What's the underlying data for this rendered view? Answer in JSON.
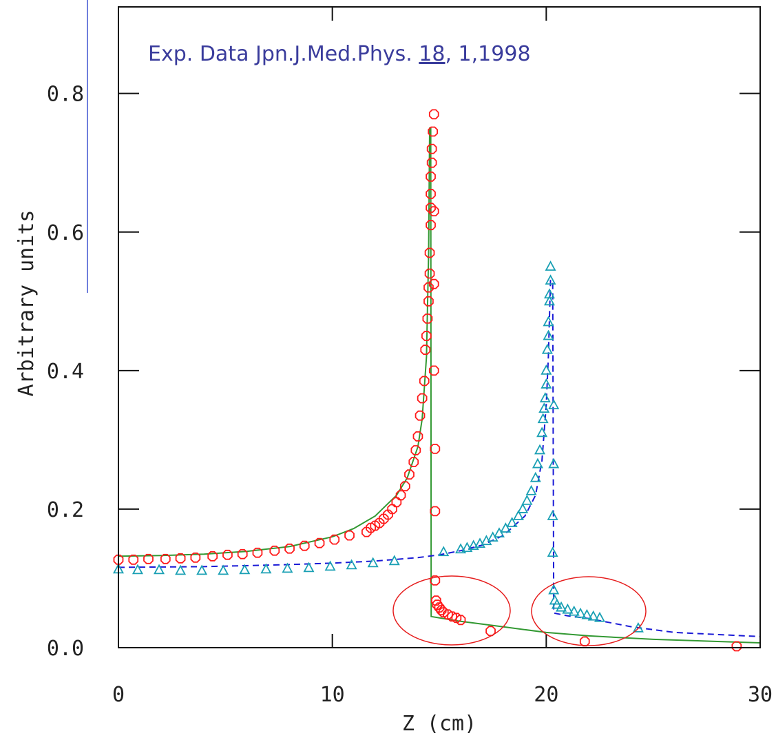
{
  "chart_data": {
    "type": "scatter",
    "annotation": [
      "Exp. Data Jpn.J.Med.Phys. ",
      "18",
      ", 1,1998"
    ],
    "x_label": "Z (cm)",
    "y_label": "Arbitrary units",
    "xlim": [
      0,
      30
    ],
    "ylim": [
      0,
      0.925
    ],
    "xticks": [
      0,
      10,
      20,
      30
    ],
    "yticks": [
      {
        "value": 0,
        "label": "0.0"
      },
      0.2,
      0.4,
      0.6,
      0.8
    ],
    "series": [
      {
        "type": "scatter",
        "marker": "circle",
        "color": "#ff1a1a",
        "x": [
          0,
          0.7,
          1.4,
          2.2,
          2.9,
          3.6,
          4.4,
          5.1,
          5.8,
          6.5,
          7.3,
          8.0,
          8.7,
          9.4,
          10.1,
          10.8,
          11.6,
          11.8,
          12.0,
          12.2,
          12.4,
          12.6,
          12.8,
          13.0,
          13.2,
          13.4,
          13.6,
          13.8,
          13.9,
          14.0,
          14.1,
          14.2,
          14.3,
          14.35,
          14.4,
          14.45,
          14.5,
          14.5,
          14.55,
          14.55,
          14.6,
          14.6,
          14.6,
          14.6,
          14.65,
          14.65,
          14.7,
          14.75,
          14.75,
          14.75,
          14.75,
          14.8,
          14.8,
          14.8,
          14.85,
          14.9,
          15.0,
          15.1,
          15.2,
          15.4,
          15.6,
          15.8,
          16.0,
          17.4,
          21.8,
          28.9
        ],
        "values": [
          0.127,
          0.127,
          0.128,
          0.128,
          0.129,
          0.13,
          0.132,
          0.134,
          0.135,
          0.137,
          0.14,
          0.143,
          0.147,
          0.151,
          0.156,
          0.162,
          0.167,
          0.173,
          0.176,
          0.18,
          0.186,
          0.192,
          0.2,
          0.21,
          0.22,
          0.233,
          0.25,
          0.268,
          0.285,
          0.305,
          0.335,
          0.36,
          0.385,
          0.43,
          0.45,
          0.475,
          0.5,
          0.52,
          0.54,
          0.57,
          0.61,
          0.635,
          0.655,
          0.68,
          0.7,
          0.72,
          0.745,
          0.77,
          0.63,
          0.525,
          0.4,
          0.287,
          0.197,
          0.097,
          0.068,
          0.062,
          0.058,
          0.054,
          0.051,
          0.048,
          0.045,
          0.043,
          0.04,
          0.024,
          0.009,
          0.002
        ]
      },
      {
        "type": "scatter",
        "marker": "triangle",
        "color": "#1aa0b4",
        "x": [
          0,
          0.9,
          1.9,
          2.9,
          3.9,
          4.9,
          5.9,
          6.9,
          7.9,
          8.9,
          9.9,
          10.9,
          11.9,
          12.9,
          15.2,
          16.0,
          16.3,
          16.6,
          16.9,
          17.2,
          17.5,
          17.8,
          18.1,
          18.4,
          18.7,
          18.9,
          19.1,
          19.3,
          19.5,
          19.6,
          19.7,
          19.8,
          19.85,
          19.9,
          19.95,
          20.0,
          20.0,
          20.05,
          20.1,
          20.1,
          20.15,
          20.15,
          20.2,
          20.2,
          20.35,
          20.35,
          20.3,
          20.3,
          20.35,
          20.4,
          20.5,
          20.7,
          21.0,
          21.3,
          21.6,
          21.9,
          22.2,
          22.5,
          24.3
        ],
        "values": [
          0.113,
          0.112,
          0.112,
          0.111,
          0.111,
          0.111,
          0.112,
          0.113,
          0.114,
          0.115,
          0.117,
          0.119,
          0.122,
          0.125,
          0.138,
          0.142,
          0.144,
          0.147,
          0.15,
          0.154,
          0.159,
          0.165,
          0.172,
          0.18,
          0.19,
          0.2,
          0.212,
          0.226,
          0.245,
          0.265,
          0.285,
          0.31,
          0.33,
          0.345,
          0.36,
          0.38,
          0.4,
          0.43,
          0.45,
          0.47,
          0.5,
          0.51,
          0.53,
          0.55,
          0.35,
          0.265,
          0.19,
          0.137,
          0.083,
          0.068,
          0.062,
          0.058,
          0.055,
          0.052,
          0.049,
          0.047,
          0.045,
          0.043,
          0.028
        ]
      },
      {
        "type": "line",
        "color": "#339933",
        "dashed": false,
        "x": [
          0,
          2,
          4,
          6,
          8,
          10,
          11,
          12,
          13,
          13.5,
          14,
          14.2,
          14.4,
          14.5,
          14.55,
          14.6,
          14.62,
          16,
          18,
          20,
          22,
          25,
          28,
          30
        ],
        "values": [
          0.132,
          0.133,
          0.135,
          0.139,
          0.146,
          0.16,
          0.172,
          0.19,
          0.22,
          0.245,
          0.29,
          0.33,
          0.42,
          0.57,
          0.75,
          0.75,
          0.045,
          0.038,
          0.03,
          0.022,
          0.017,
          0.012,
          0.009,
          0.007
        ]
      },
      {
        "type": "line",
        "color": "#1a1ad6",
        "dashed": true,
        "x": [
          0,
          4,
          8,
          10,
          12,
          14,
          15,
          16,
          17,
          18,
          19,
          19.5,
          19.8,
          20.0,
          20.1,
          20.2,
          20.3,
          20.35,
          21,
          22,
          24,
          26,
          28,
          30
        ],
        "values": [
          0.116,
          0.117,
          0.12,
          0.122,
          0.125,
          0.13,
          0.134,
          0.14,
          0.148,
          0.162,
          0.19,
          0.22,
          0.27,
          0.35,
          0.42,
          0.53,
          0.53,
          0.05,
          0.046,
          0.042,
          0.03,
          0.022,
          0.019,
          0.016
        ]
      }
    ]
  }
}
